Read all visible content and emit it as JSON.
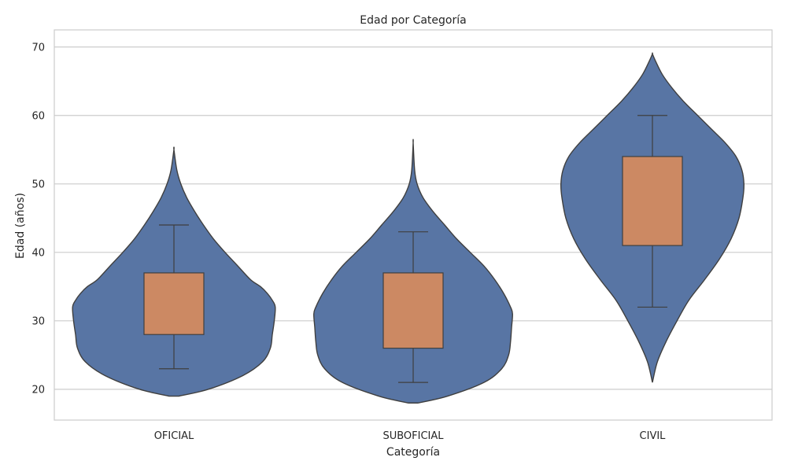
{
  "chart_data": {
    "type": "violin",
    "title": "Edad por Categoría",
    "xlabel": "Categoría",
    "ylabel": "Edad (años)",
    "ylim": [
      15.5,
      72.5
    ],
    "yticks": [
      20,
      30,
      40,
      50,
      60,
      70
    ],
    "grid": true,
    "categories": [
      "OFICIAL",
      "SUBOFICIAL",
      "CIVIL"
    ],
    "violin_color": "#5875a4",
    "box_color": "#cc8963",
    "series": [
      {
        "category": "OFICIAL",
        "box": {
          "whisker_low": 23,
          "q1": 28,
          "q3": 37,
          "whisker_high": 44
        },
        "range": [
          19,
          55
        ],
        "density": [
          [
            19,
            0.05
          ],
          [
            20,
            0.35
          ],
          [
            22,
            0.7
          ],
          [
            24,
            0.9
          ],
          [
            26,
            0.98
          ],
          [
            28,
            1.0
          ],
          [
            30,
            1.02
          ],
          [
            32,
            1.03
          ],
          [
            33,
            1.0
          ],
          [
            34,
            0.95
          ],
          [
            35,
            0.88
          ],
          [
            36,
            0.78
          ],
          [
            38,
            0.65
          ],
          [
            40,
            0.52
          ],
          [
            42,
            0.4
          ],
          [
            44,
            0.3
          ],
          [
            46,
            0.21
          ],
          [
            48,
            0.13
          ],
          [
            50,
            0.07
          ],
          [
            52,
            0.03
          ],
          [
            55,
            0.0
          ]
        ]
      },
      {
        "category": "SUBOFICIAL",
        "box": {
          "whisker_low": 21,
          "q1": 26,
          "q3": 37,
          "whisker_high": 43
        },
        "range": [
          18,
          56
        ],
        "density": [
          [
            18,
            0.05
          ],
          [
            19,
            0.35
          ],
          [
            21,
            0.72
          ],
          [
            23,
            0.9
          ],
          [
            25,
            0.97
          ],
          [
            27,
            0.99
          ],
          [
            29,
            1.0
          ],
          [
            31,
            1.01
          ],
          [
            32,
            0.99
          ],
          [
            34,
            0.92
          ],
          [
            36,
            0.83
          ],
          [
            38,
            0.72
          ],
          [
            40,
            0.58
          ],
          [
            42,
            0.44
          ],
          [
            44,
            0.32
          ],
          [
            46,
            0.2
          ],
          [
            48,
            0.1
          ],
          [
            50,
            0.04
          ],
          [
            52,
            0.015
          ],
          [
            56,
            0.0
          ]
        ]
      },
      {
        "category": "CIVIL",
        "box": {
          "whisker_low": 32,
          "q1": 41,
          "q3": 54,
          "whisker_high": 60
        },
        "range": [
          21,
          69
        ],
        "density": [
          [
            21,
            0.0
          ],
          [
            24,
            0.05
          ],
          [
            27,
            0.14
          ],
          [
            30,
            0.25
          ],
          [
            33,
            0.37
          ],
          [
            36,
            0.53
          ],
          [
            39,
            0.68
          ],
          [
            42,
            0.8
          ],
          [
            45,
            0.88
          ],
          [
            48,
            0.92
          ],
          [
            50,
            0.93
          ],
          [
            52,
            0.91
          ],
          [
            54,
            0.85
          ],
          [
            56,
            0.74
          ],
          [
            58,
            0.6
          ],
          [
            60,
            0.46
          ],
          [
            62,
            0.32
          ],
          [
            64,
            0.2
          ],
          [
            66,
            0.1
          ],
          [
            68,
            0.03
          ],
          [
            69,
            0.0
          ]
        ]
      }
    ]
  }
}
